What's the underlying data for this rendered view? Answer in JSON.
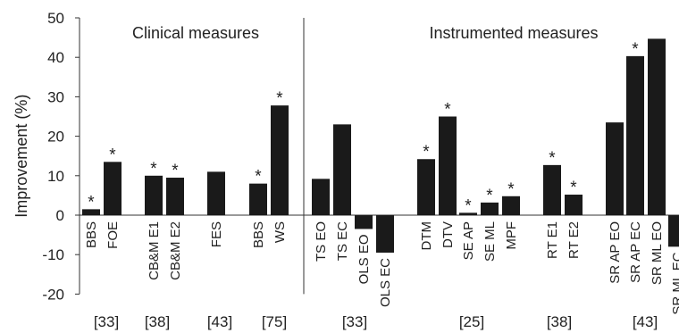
{
  "chart_data": {
    "type": "bar",
    "ylabel": "Improvement (%)",
    "ylim": [
      -20,
      50
    ],
    "yticks": [
      50,
      40,
      30,
      20,
      10,
      0,
      -10,
      -20
    ],
    "colors": {
      "bar": "#1a1a1a",
      "axis": "#333333"
    },
    "regions": [
      "Clinical measures",
      "Instrumented measures"
    ],
    "bars": [
      {
        "label": "BBS",
        "value": 1.5,
        "star": true,
        "group": 0
      },
      {
        "label": "FOE",
        "value": 13.5,
        "star": true,
        "group": 0
      },
      {
        "label": "CB&M E1",
        "value": 10,
        "star": true,
        "group": 1
      },
      {
        "label": "CB&M E2",
        "value": 9.5,
        "star": true,
        "group": 1
      },
      {
        "label": "FES",
        "value": 11,
        "star": false,
        "group": 2
      },
      {
        "label": "BBS",
        "value": 8,
        "star": true,
        "group": 3
      },
      {
        "label": "WS",
        "value": 27.8,
        "star": true,
        "group": 3
      },
      {
        "label": "TS EO",
        "value": 9.2,
        "star": false,
        "group": 4
      },
      {
        "label": "TS EC",
        "value": 23,
        "star": false,
        "group": 4
      },
      {
        "label": "OLS EO",
        "value": -3.5,
        "star": false,
        "group": 4
      },
      {
        "label": "OLS EC",
        "value": -9.5,
        "star": false,
        "group": 4
      },
      {
        "label": "DTM",
        "value": 14.2,
        "star": true,
        "group": 5
      },
      {
        "label": "DTV",
        "value": 25,
        "star": true,
        "group": 5
      },
      {
        "label": "SE AP",
        "value": 0.6,
        "star": true,
        "group": 5
      },
      {
        "label": "SE ML",
        "value": 3.2,
        "star": true,
        "group": 5
      },
      {
        "label": "MPF",
        "value": 4.8,
        "star": true,
        "group": 5
      },
      {
        "label": "RT E1",
        "value": 12.7,
        "star": true,
        "group": 6
      },
      {
        "label": "RT E2",
        "value": 5.2,
        "star": true,
        "group": 6
      },
      {
        "label": "SR AP EO",
        "value": 23.5,
        "star": false,
        "group": 7
      },
      {
        "label": "SR AP EC",
        "value": 40.3,
        "star": true,
        "group": 7
      },
      {
        "label": "SR ML EO",
        "value": 44.7,
        "star": false,
        "group": 7
      },
      {
        "label": "SR ML EC",
        "value": -8,
        "star": false,
        "group": 7
      }
    ],
    "references": [
      "[33]",
      "[38]",
      "[43]",
      "[75]",
      "[33]",
      "[25]",
      "[38]",
      "[43]"
    ]
  }
}
